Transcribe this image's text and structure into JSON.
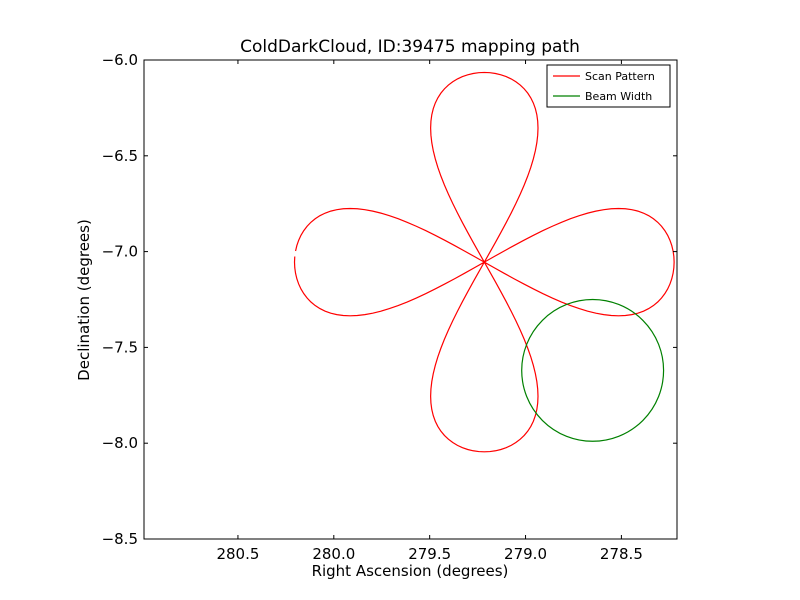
{
  "chart_data": {
    "type": "line",
    "title": "ColdDarkCloud, ID:39475 mapping path",
    "xlabel": "Right Ascension (degrees)",
    "ylabel": "Declination (degrees)",
    "xlim": [
      280.99,
      278.21
    ],
    "ylim": [
      -8.5,
      -6.0
    ],
    "x_inverted": true,
    "xticks": [
      280.5,
      280.0,
      279.5,
      279.0,
      278.5
    ],
    "xtick_labels": [
      "280.5",
      "280.0",
      "279.5",
      "279.0",
      "278.5"
    ],
    "yticks": [
      -6.0,
      -6.5,
      -7.0,
      -7.5,
      -8.0,
      -8.5
    ],
    "ytick_labels": [
      "−6.0",
      "−6.5",
      "−7.0",
      "−7.5",
      "−8.0",
      "−8.5"
    ],
    "grid": false,
    "legend_position": "top-right",
    "series": [
      {
        "name": "Scan Pattern",
        "color": "#ff0000",
        "center": [
          279.215,
          -7.055
        ],
        "lobe_length": 0.99,
        "lobe_width": 0.28,
        "points_per_lobe": 60,
        "orientation_deg": [
          0,
          90,
          180,
          270
        ],
        "gap_from_x": 280.251,
        "gap_to_x": 280.232
      },
      {
        "name": "Beam Width",
        "color": "#008000",
        "shape": "circle",
        "center": [
          278.65,
          -7.62
        ],
        "radius": 0.37
      }
    ]
  }
}
